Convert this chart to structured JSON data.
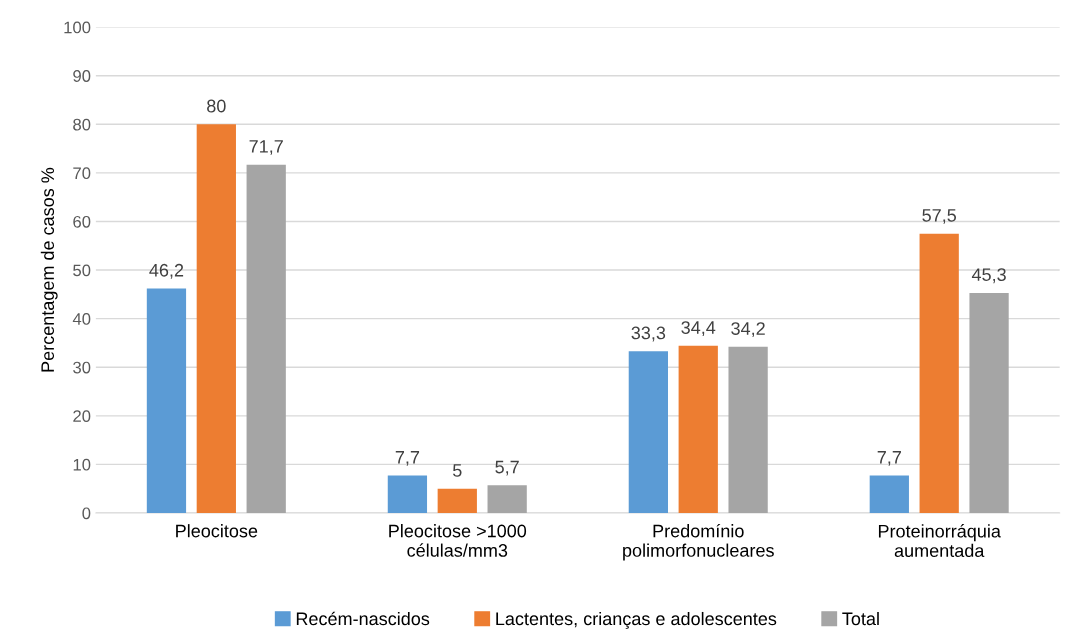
{
  "chart_data": {
    "type": "bar",
    "ylabel": "Percentagem de casos %",
    "categories": [
      "Pleocitose",
      "Pleocitose >1000\ncélulas/mm3",
      "Predomínio\npolimorfonucleares",
      "Proteinorráquia\naumentada"
    ],
    "series": [
      {
        "name": "Recém-nascidos",
        "color": "#5b9bd5",
        "values": [
          46.2,
          7.7,
          33.3,
          7.7
        ],
        "value_labels": [
          "46,2",
          "7,7",
          "33,3",
          "7,7"
        ]
      },
      {
        "name": "Lactentes, crianças e adolescentes",
        "color": "#ed7d31",
        "values": [
          80,
          5,
          34.4,
          57.5
        ],
        "value_labels": [
          "80",
          "5",
          "34,4",
          "57,5"
        ]
      },
      {
        "name": "Total",
        "color": "#a5a5a5",
        "values": [
          71.7,
          5.7,
          34.2,
          45.3
        ],
        "value_labels": [
          "71,7",
          "5,7",
          "34,2",
          "45,3"
        ]
      }
    ],
    "ylim": [
      0,
      100
    ],
    "yticks": [
      0,
      10,
      20,
      30,
      40,
      50,
      60,
      70,
      80,
      90,
      100
    ],
    "grid": "y",
    "legend": "bottom"
  }
}
